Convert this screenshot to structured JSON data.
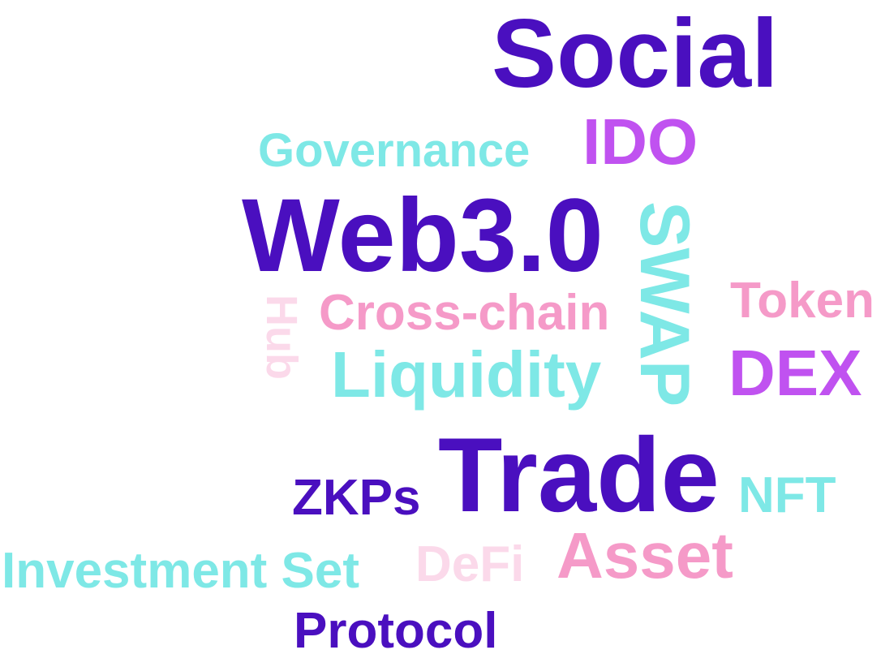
{
  "colors": {
    "dark_purple": "#4a0fbf",
    "violet": "#c052f0",
    "cyan": "#7ee8e6",
    "pink": "#f59ac8",
    "light_pink": "#fbd9ea"
  },
  "words": {
    "social": "Social",
    "governance": "Governance",
    "ido": "IDO",
    "web3": "Web3.0",
    "swap": "SWAP",
    "hub": "Hub",
    "crosschain": "Cross-chain",
    "token": "Token",
    "liquidity": "Liquidity",
    "dex": "DEX",
    "trade": "Trade",
    "zkps": "ZKPs",
    "nft": "NFT",
    "investment_set": "Investment Set",
    "defi": "DeFi",
    "asset": "Asset",
    "protocol": "Protocol"
  }
}
